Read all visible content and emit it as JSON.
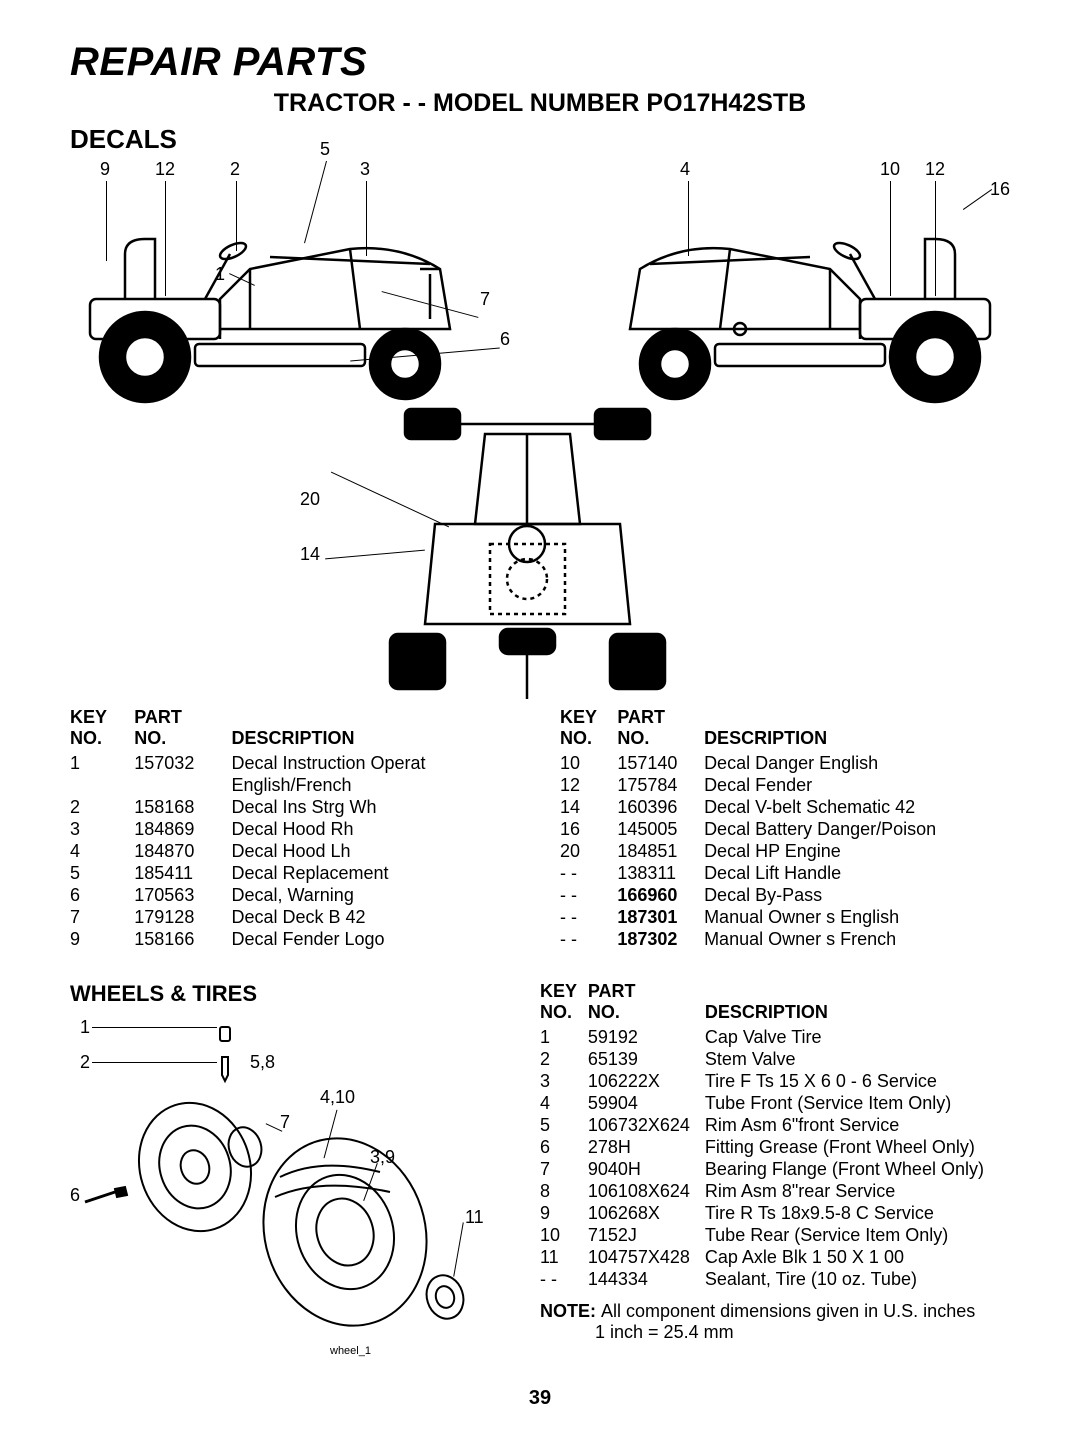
{
  "page": {
    "title": "REPAIR PARTS",
    "model": "TRACTOR - - MODEL NUMBER PO17H42STB",
    "section1": "DECALS",
    "section2": "WHEELS & TIRES",
    "page_number": "39",
    "wheel_fig_label": "wheel_1",
    "note_label": "NOTE:",
    "note_text": "All component dimensions given in U.S. inches",
    "note_line2": "1 inch = 25.4 mm",
    "colors": {
      "text": "#000000",
      "background": "#ffffff",
      "stroke": "#000000"
    },
    "fontsizes": {
      "title_main": 40,
      "title_model": 25,
      "section": 26,
      "table": 18,
      "callout": 18,
      "note": 18,
      "page_num": 20
    }
  },
  "decals_callouts_left": [
    "9",
    "12",
    "2",
    "5",
    "3",
    "1",
    "7",
    "6",
    "20",
    "14"
  ],
  "decals_callouts_right": [
    "4",
    "10",
    "12",
    "16"
  ],
  "headers": {
    "key": "KEY",
    "no": "NO.",
    "part": "PART",
    "desc": "DESCRIPTION"
  },
  "decals_left": [
    {
      "key": "1",
      "part": "157032",
      "desc": "Decal Instruction Operat",
      "desc2": "English/French"
    },
    {
      "key": "2",
      "part": "158168",
      "desc": "Decal Ins Strg Wh"
    },
    {
      "key": "3",
      "part": "184869",
      "desc": "Decal Hood Rh"
    },
    {
      "key": "4",
      "part": "184870",
      "desc": "Decal Hood Lh"
    },
    {
      "key": "5",
      "part": "185411",
      "desc": "Decal Replacement"
    },
    {
      "key": "6",
      "part": "170563",
      "desc": "Decal, Warning"
    },
    {
      "key": "7",
      "part": "179128",
      "desc": "Decal Deck B 42"
    },
    {
      "key": "9",
      "part": "158166",
      "desc": "Decal Fender Logo"
    }
  ],
  "decals_right": [
    {
      "key": "10",
      "part": "157140",
      "desc": "Decal Danger English"
    },
    {
      "key": "12",
      "part": "175784",
      "desc": "Decal Fender"
    },
    {
      "key": "14",
      "part": "160396",
      "desc": "Decal V-belt Schematic 42"
    },
    {
      "key": "16",
      "part": "145005",
      "desc": "Decal Battery Danger/Poison"
    },
    {
      "key": "20",
      "part": "184851",
      "desc": "Decal HP Engine"
    },
    {
      "key": "- -",
      "part": "138311",
      "desc": "Decal Lift Handle"
    },
    {
      "key": "- -",
      "part": "166960",
      "desc": "Decal By-Pass",
      "bold_part": true
    },
    {
      "key": "- -",
      "part": "187301",
      "desc": "Manual Owner s English",
      "bold_part": true
    },
    {
      "key": "- -",
      "part": "187302",
      "desc": "Manual Owner s French",
      "bold_part": true
    }
  ],
  "wheels_callouts": [
    "1",
    "2",
    "5,8",
    "4,10",
    "7",
    "3,9",
    "6",
    "11"
  ],
  "wheels_table": [
    {
      "key": "1",
      "part": "59192",
      "desc": "Cap Valve Tire"
    },
    {
      "key": "2",
      "part": "65139",
      "desc": "Stem Valve"
    },
    {
      "key": "3",
      "part": "106222X",
      "desc": "Tire F Ts 15 X 6 0 - 6 Service"
    },
    {
      "key": "4",
      "part": "59904",
      "desc": "Tube  Front (Service Item Only)"
    },
    {
      "key": "5",
      "part": "106732X624",
      "desc": "Rim Asm 6\"front Service"
    },
    {
      "key": "6",
      "part": "278H",
      "desc": "Fitting Grease (Front Wheel Only)"
    },
    {
      "key": "7",
      "part": "9040H",
      "desc": "Bearing Flange (Front Wheel Only)"
    },
    {
      "key": "8",
      "part": "106108X624",
      "desc": "Rim Asm 8\"rear Service"
    },
    {
      "key": "9",
      "part": "106268X",
      "desc": "Tire R Ts 18x9.5-8 C Service"
    },
    {
      "key": "10",
      "part": "7152J",
      "desc": "Tube Rear (Service Item Only)"
    },
    {
      "key": "11",
      "part": "104757X428",
      "desc": "Cap Axle Blk 1 50 X 1 00"
    },
    {
      "key": "- -",
      "part": "144334",
      "desc": "Sealant, Tire (10 oz. Tube)"
    }
  ]
}
